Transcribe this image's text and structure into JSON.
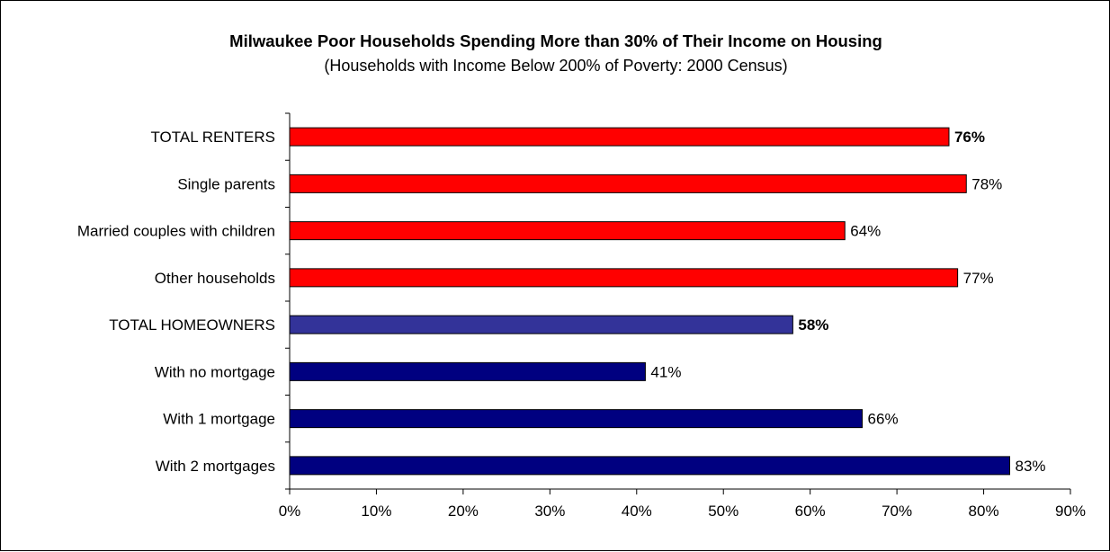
{
  "chart_data": {
    "type": "bar",
    "orientation": "horizontal",
    "title": "Milwaukee Poor Households Spending More than 30% of Their Income on Housing",
    "subtitle": "(Households with Income Below 200% of Poverty: 2000 Census)",
    "categories": [
      "TOTAL RENTERS",
      "Single parents",
      "Married couples with children",
      "Other households",
      "TOTAL HOMEOWNERS",
      "With no mortgage",
      "With 1 mortgage",
      "With 2 mortgages"
    ],
    "values": [
      76,
      78,
      64,
      77,
      58,
      41,
      66,
      83
    ],
    "value_labels": [
      "76%",
      "78%",
      "64%",
      "77%",
      "58%",
      "41%",
      "66%",
      "83%"
    ],
    "bold_labels": [
      true,
      false,
      false,
      false,
      true,
      false,
      false,
      false
    ],
    "colors": [
      "#ff0000",
      "#ff0000",
      "#ff0000",
      "#ff0000",
      "#333399",
      "#000080",
      "#000080",
      "#000080"
    ],
    "xlim": [
      0,
      90
    ],
    "x_ticks": [
      0,
      10,
      20,
      30,
      40,
      50,
      60,
      70,
      80,
      90
    ],
    "x_tick_labels": [
      "0%",
      "10%",
      "20%",
      "30%",
      "40%",
      "50%",
      "60%",
      "70%",
      "80%",
      "90%"
    ],
    "xlabel": "",
    "ylabel": "",
    "grid": false,
    "legend": "none"
  }
}
